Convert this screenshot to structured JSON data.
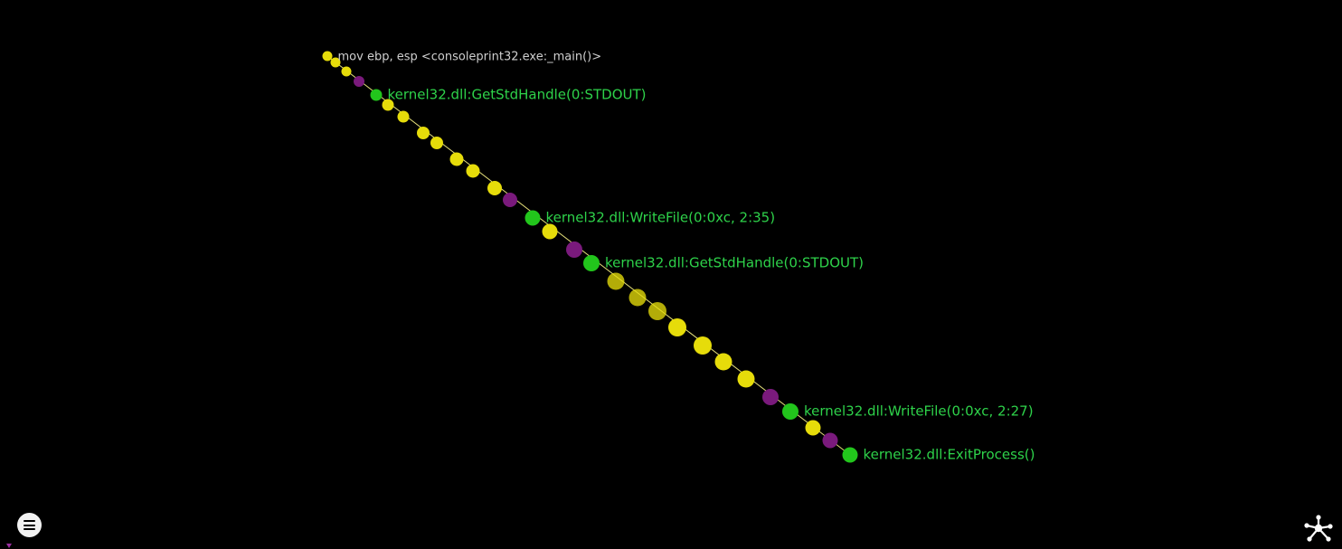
{
  "colors": {
    "background": "#000000",
    "edge": "#e6e07a",
    "node_instruction": "#e6dc0a",
    "node_jump": "#7a1a7c",
    "node_api": "#22c51c",
    "label_root": "#cfcfcf",
    "label_api": "#2ed24a"
  },
  "graph": {
    "nodes": [
      {
        "type": "instruction",
        "label": "mov ebp, esp <consoleprint32.exe:_main()>"
      },
      {
        "type": "instruction",
        "label": ""
      },
      {
        "type": "instruction",
        "label": ""
      },
      {
        "type": "jump",
        "label": ""
      },
      {
        "type": "api",
        "label": "kernel32.dll:GetStdHandle(0:STDOUT)"
      },
      {
        "type": "instruction",
        "label": ""
      },
      {
        "type": "instruction",
        "label": ""
      },
      {
        "type": "instruction",
        "label": ""
      },
      {
        "type": "instruction",
        "label": ""
      },
      {
        "type": "instruction",
        "label": ""
      },
      {
        "type": "instruction",
        "label": ""
      },
      {
        "type": "instruction",
        "label": ""
      },
      {
        "type": "jump",
        "label": ""
      },
      {
        "type": "api",
        "label": "kernel32.dll:WriteFile(0:0xc, 2:35)"
      },
      {
        "type": "instruction",
        "label": ""
      },
      {
        "type": "jump",
        "label": ""
      },
      {
        "type": "api",
        "label": "kernel32.dll:GetStdHandle(0:STDOUT)"
      },
      {
        "type": "instruction",
        "label": ""
      },
      {
        "type": "instruction",
        "label": ""
      },
      {
        "type": "instruction",
        "label": ""
      },
      {
        "type": "instruction",
        "label": ""
      },
      {
        "type": "instruction",
        "label": ""
      },
      {
        "type": "instruction",
        "label": ""
      },
      {
        "type": "instruction",
        "label": ""
      },
      {
        "type": "jump",
        "label": ""
      },
      {
        "type": "api",
        "label": "kernel32.dll:WriteFile(0:0xc, 2:27)"
      },
      {
        "type": "instruction",
        "label": ""
      },
      {
        "type": "jump",
        "label": ""
      },
      {
        "type": "api",
        "label": "kernel32.dll:ExitProcess()"
      }
    ]
  },
  "controls": {
    "menu_icon": "hamburger-menu-icon",
    "graph_icon": "graph-network-icon"
  }
}
